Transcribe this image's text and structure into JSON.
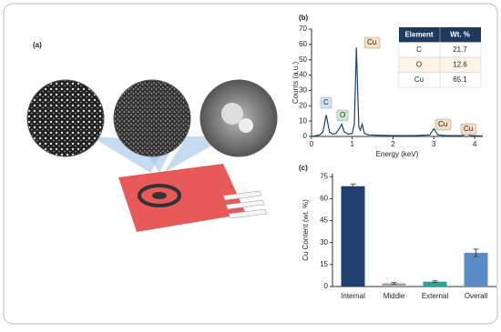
{
  "panel_a": {
    "label": "(a)"
  },
  "chart_data": [
    {
      "type": "line",
      "panel_label": "(b)",
      "x_label": "Energy (keV)",
      "y_label": "Counts (a.u.)",
      "x": [
        0,
        0.1,
        0.2,
        0.28,
        0.36,
        0.44,
        0.52,
        0.6,
        0.68,
        0.74,
        0.8,
        0.9,
        1.0,
        1.05,
        1.1,
        1.16,
        1.2,
        1.24,
        1.3,
        1.4,
        1.6,
        2.0,
        2.5,
        2.9,
        3.0,
        3.1,
        3.3,
        3.7,
        3.8,
        3.9,
        4.2
      ],
      "values": [
        0,
        0.5,
        1,
        3,
        14,
        3,
        1.5,
        2,
        5,
        8,
        3,
        1.5,
        2,
        8,
        58,
        6,
        4,
        8,
        2,
        1,
        0.8,
        0.5,
        0.5,
        1,
        5,
        1,
        0.5,
        0.5,
        2,
        0.5,
        0.3
      ],
      "color": "#1f3f6e",
      "annotations": [
        "C",
        "O",
        "Cu",
        "Cu",
        "Cu"
      ],
      "xlim": [
        0,
        4.2
      ],
      "xticks": [
        0,
        1,
        2,
        3,
        4
      ],
      "ylim": [
        0,
        70
      ],
      "yticks": [
        0,
        10,
        20,
        30,
        40,
        50,
        60,
        70
      ]
    },
    {
      "type": "bar",
      "panel_label": "(c)",
      "y_label": "Cu Content (wt. %)",
      "categories": [
        "Internal",
        "Middle",
        "External",
        "Overall"
      ],
      "series": [
        {
          "values": [
            68.5,
            2.2,
            3.3,
            23
          ],
          "errors": [
            1.5,
            0.5,
            0.6,
            2.5
          ],
          "colors": [
            "#1f3f6e",
            "#a6a6a6",
            "#25a59a",
            "#5b8cc8"
          ]
        }
      ],
      "ylim": [
        0,
        77
      ],
      "yticks": [
        0,
        15,
        30,
        45,
        60,
        75
      ]
    }
  ],
  "eds_table": {
    "header": [
      "Element",
      "Wt. %"
    ],
    "rows": [
      [
        "C",
        "21.7"
      ],
      [
        "O",
        "12.6"
      ],
      [
        "Cu",
        "65.1"
      ]
    ]
  }
}
